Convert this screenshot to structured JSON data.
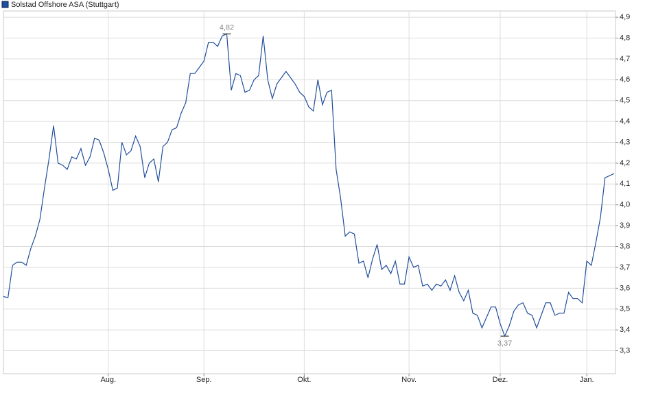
{
  "chart_data": {
    "type": "line",
    "categories": [
      null,
      null,
      null,
      null,
      null,
      null,
      null,
      null,
      null,
      null,
      null,
      null,
      null,
      null,
      null,
      null,
      null,
      null,
      null,
      null,
      null,
      null,
      null,
      "Aug.",
      null,
      null,
      null,
      null,
      null,
      null,
      null,
      null,
      null,
      null,
      null,
      null,
      null,
      null,
      null,
      null,
      null,
      null,
      null,
      null,
      "Sep.",
      null,
      null,
      null,
      null,
      null,
      null,
      null,
      null,
      null,
      null,
      null,
      null,
      null,
      null,
      null,
      null,
      null,
      null,
      null,
      null,
      null,
      "Okt.",
      null,
      null,
      null,
      null,
      null,
      null,
      null,
      null,
      null,
      null,
      null,
      null,
      null,
      null,
      null,
      null,
      null,
      null,
      null,
      null,
      null,
      null,
      "Nov.",
      null,
      null,
      null,
      null,
      null,
      null,
      null,
      null,
      null,
      null,
      null,
      null,
      null,
      null,
      null,
      null,
      null,
      null,
      null,
      "Dez.",
      null,
      null,
      null,
      null,
      null,
      null,
      null,
      null,
      null,
      null,
      null,
      null,
      null,
      null,
      null,
      null,
      null,
      null,
      "Jan.",
      null,
      null,
      null,
      null,
      null,
      null
    ],
    "series": [
      {
        "name": "Solstad Offshore ASA (Stuttgart)",
        "color": "#1f4e9c",
        "values": [
          3.56,
          3.555,
          3.71,
          3.725,
          3.725,
          3.71,
          3.79,
          3.85,
          3.93,
          4.08,
          4.22,
          4.38,
          4.2,
          4.19,
          4.17,
          4.23,
          4.22,
          4.27,
          4.19,
          4.23,
          4.32,
          4.31,
          4.25,
          4.17,
          4.07,
          4.08,
          4.3,
          4.24,
          4.26,
          4.33,
          4.28,
          4.13,
          4.2,
          4.22,
          4.11,
          4.28,
          4.3,
          4.36,
          4.37,
          4.44,
          4.49,
          4.63,
          4.63,
          4.66,
          4.69,
          4.78,
          4.78,
          4.76,
          4.81,
          4.82,
          4.55,
          4.63,
          4.62,
          4.54,
          4.55,
          4.6,
          4.62,
          4.81,
          4.6,
          4.51,
          4.58,
          4.61,
          4.64,
          4.61,
          4.58,
          4.54,
          4.52,
          4.47,
          4.45,
          4.6,
          4.48,
          4.54,
          4.55,
          4.17,
          4.03,
          3.85,
          3.87,
          3.86,
          3.72,
          3.73,
          3.65,
          3.74,
          3.81,
          3.69,
          3.71,
          3.67,
          3.73,
          3.62,
          3.62,
          3.75,
          3.7,
          3.71,
          3.61,
          3.62,
          3.59,
          3.62,
          3.61,
          3.64,
          3.59,
          3.66,
          3.58,
          3.54,
          3.59,
          3.48,
          3.47,
          3.41,
          3.46,
          3.51,
          3.51,
          3.43,
          3.37,
          3.42,
          3.49,
          3.52,
          3.53,
          3.48,
          3.47,
          3.41,
          3.47,
          3.53,
          3.53,
          3.47,
          3.48,
          3.48,
          3.58,
          3.55,
          3.55,
          3.53,
          3.73,
          3.71,
          3.82,
          3.94,
          4.13,
          4.14,
          4.15
        ],
        "value_labels": [
          null,
          null,
          null,
          null,
          null,
          null,
          null,
          null,
          null,
          null,
          null,
          null,
          null,
          null,
          null,
          null,
          null,
          null,
          null,
          null,
          null,
          null,
          null,
          null,
          null,
          null,
          null,
          null,
          null,
          null,
          null,
          null,
          null,
          null,
          null,
          null,
          null,
          null,
          null,
          null,
          null,
          null,
          null,
          null,
          null,
          null,
          null,
          null,
          null,
          "4,82",
          null,
          null,
          null,
          null,
          null,
          null,
          null,
          null,
          null,
          null,
          null,
          null,
          null,
          null,
          null,
          null,
          null,
          null,
          null,
          null,
          null,
          null,
          null,
          null,
          null,
          null,
          null,
          null,
          null,
          null,
          null,
          null,
          null,
          null,
          null,
          null,
          null,
          null,
          null,
          null,
          null,
          null,
          null,
          null,
          null,
          null,
          null,
          null,
          null,
          null,
          null,
          null,
          null,
          null,
          null,
          null,
          null,
          null,
          null,
          null,
          "3,37",
          null,
          null,
          null,
          null,
          null,
          null,
          null,
          null,
          null,
          null,
          null,
          null,
          null,
          null,
          null,
          null,
          null,
          null,
          null,
          null,
          null,
          null,
          null,
          null
        ]
      }
    ],
    "ylim": [
      3.19,
      4.93
    ],
    "yticks": [
      {
        "value": 3.3,
        "label": "3,3"
      },
      {
        "value": 3.4,
        "label": "3,4"
      },
      {
        "value": 3.5,
        "label": "3,5"
      },
      {
        "value": 3.6,
        "label": "3,6"
      },
      {
        "value": 3.7,
        "label": "3,7"
      },
      {
        "value": 3.8,
        "label": "3,8"
      },
      {
        "value": 3.9,
        "label": "3,9"
      },
      {
        "value": 4.0,
        "label": "4,0"
      },
      {
        "value": 4.1,
        "label": "4,1"
      },
      {
        "value": 4.2,
        "label": "4,2"
      },
      {
        "value": 4.3,
        "label": "4,3"
      },
      {
        "value": 4.4,
        "label": "4,4"
      },
      {
        "value": 4.5,
        "label": "4,5"
      },
      {
        "value": 4.6,
        "label": "4,6"
      },
      {
        "value": 4.7,
        "label": "4,7"
      },
      {
        "value": 4.8,
        "label": "4,8"
      },
      {
        "value": 4.9,
        "label": "4,9"
      }
    ],
    "grid": true
  }
}
